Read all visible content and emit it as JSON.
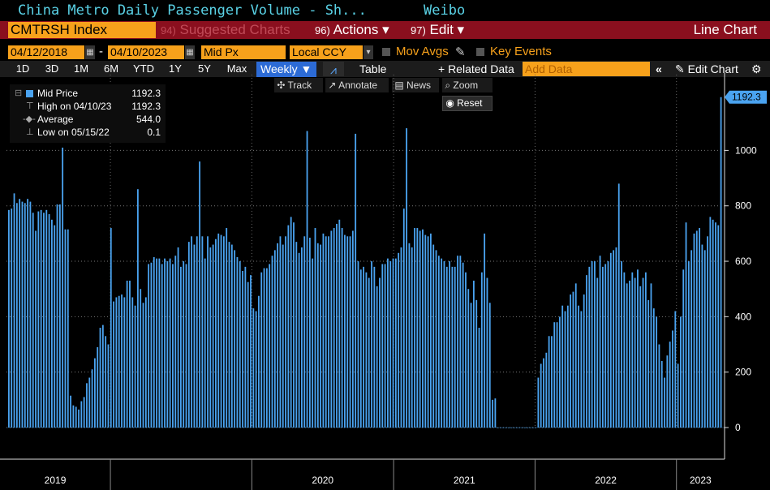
{
  "header": {
    "title": "China Metro Daily Passenger Volume - Sh...",
    "source": "Weibo"
  },
  "toolbar": {
    "ticker": "CMTRSH Index",
    "suggested_num": "94)",
    "suggested_label": "Suggested Charts",
    "actions_num": "96)",
    "actions_label": "Actions ▾",
    "edit_num": "97)",
    "edit_label": "Edit ▾",
    "chart_type": "Line Chart"
  },
  "controls": {
    "start_date": "04/12/2018",
    "dash": "-",
    "end_date": "04/10/2023",
    "field": "Mid Px",
    "currency": "Local CCY",
    "mov_avgs": "Mov Avgs",
    "key_events": "Key Events"
  },
  "periods": [
    "1D",
    "3D",
    "1M",
    "6M",
    "YTD",
    "1Y",
    "5Y",
    "Max"
  ],
  "frequency": "Weekly ▼",
  "table_label": "Table",
  "related": "+ Related Data",
  "add_data_placeholder": "Add Data",
  "edit_chart": "Edit Chart",
  "tools": {
    "track": "Track",
    "annotate": "Annotate",
    "news": "News",
    "zoom": "Zoom",
    "reset": "Reset"
  },
  "legend": {
    "mid_label": "Mid Price",
    "mid_value": "1192.3",
    "high_label": "High on 04/10/23",
    "high_value": "1192.3",
    "avg_label": "Average",
    "avg_value": "544.0",
    "low_label": "Low on 05/15/22",
    "low_value": "0.1"
  },
  "colors": {
    "bar": "#4aa3f0",
    "accent": "#f7a11b",
    "header": "#8a0f1e",
    "title": "#5ad2e6"
  },
  "chart_data": {
    "type": "bar",
    "title": "China Metro Daily Passenger Volume - Sh...",
    "ylim": [
      0,
      1250
    ],
    "yticks": [
      0,
      200,
      400,
      600,
      800,
      1000
    ],
    "last_value_label": "1192.3",
    "xlabels": [
      {
        "label": "2019",
        "date": "2019-01-01"
      },
      {
        "label": "2020",
        "date": "2020-01-01"
      },
      {
        "label": "2021",
        "date": "2021-01-01"
      },
      {
        "label": "2022",
        "date": "2022-01-01"
      },
      {
        "label": "2023",
        "date": "2023-01-01"
      }
    ],
    "first_date": "2018-04-12",
    "last_date": "2023-04-10",
    "series": [
      {
        "values": [
          785,
          790,
          845,
          810,
          825,
          815,
          810,
          825,
          815,
          775,
          710,
          780,
          785,
          775,
          785,
          770,
          750,
          730,
          805,
          805,
          1010,
          715,
          715,
          115,
          80,
          75,
          65,
          95,
          110,
          160,
          180,
          210,
          250,
          290,
          360,
          370,
          330,
          300,
          720,
          455,
          470,
          475,
          480,
          470,
          530,
          530,
          470,
          440,
          860,
          500,
          450,
          470,
          590,
          595,
          615,
          610,
          610,
          590,
          610,
          600,
          610,
          590,
          620,
          650,
          580,
          600,
          590,
          670,
          690,
          660,
          690,
          960,
          690,
          610,
          690,
          650,
          660,
          680,
          700,
          695,
          690,
          720,
          670,
          660,
          640,
          615,
          600,
          565,
          580,
          525,
          550,
          430,
          420,
          475,
          560,
          575,
          575,
          590,
          620,
          640,
          665,
          690,
          660,
          690,
          730,
          760,
          740,
          670,
          630,
          650,
          690,
          1070,
          685,
          610,
          720,
          665,
          660,
          700,
          690,
          690,
          710,
          720,
          735,
          750,
          720,
          695,
          690,
          690,
          710,
          1060,
          600,
          570,
          580,
          560,
          540,
          600,
          580,
          510,
          540,
          590,
          590,
          610,
          600,
          610,
          610,
          630,
          650,
          790,
          1080,
          665,
          650,
          720,
          720,
          710,
          715,
          695,
          690,
          700,
          660,
          640,
          620,
          610,
          600,
          580,
          600,
          580,
          580,
          620,
          620,
          595,
          560,
          500,
          450,
          530,
          460,
          360,
          560,
          700,
          540,
          450,
          100,
          105,
          0,
          0,
          0,
          0,
          0,
          0,
          0,
          0,
          0,
          0,
          0,
          0,
          0,
          0,
          0,
          180,
          230,
          250,
          270,
          330,
          330,
          380,
          380,
          400,
          440,
          420,
          440,
          480,
          490,
          520,
          440,
          420,
          480,
          550,
          580,
          600,
          600,
          540,
          620,
          580,
          590,
          600,
          630,
          640,
          650,
          880,
          600,
          560,
          520,
          530,
          560,
          540,
          570,
          510,
          540,
          560,
          460,
          520,
          430,
          400,
          300,
          240,
          180,
          260,
          310,
          350,
          420,
          230,
          400,
          570,
          740,
          600,
          640,
          700,
          710,
          720,
          660,
          640,
          690,
          760,
          750,
          740,
          730,
          1192.3
        ]
      }
    ]
  }
}
